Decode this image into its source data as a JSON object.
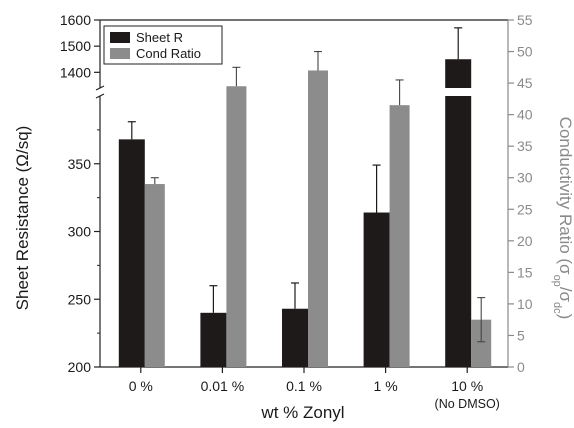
{
  "chart_data": {
    "type": "bar",
    "title": "",
    "xlabel": "wt % Zonyl",
    "ylabel_left": "Sheet Resistance (Ω/sq)",
    "ylabel_right_main": "Conductivity Ratio (σ",
    "ylabel_right_sub1": "op",
    "ylabel_right_mid": "/σ",
    "ylabel_right_sub2": "dc",
    "ylabel_right_end": ")",
    "categories": [
      {
        "label": "0 %",
        "sublabel": ""
      },
      {
        "label": "0.01 %",
        "sublabel": ""
      },
      {
        "label": "0.1 %",
        "sublabel": ""
      },
      {
        "label": "1 %",
        "sublabel": ""
      },
      {
        "label": "10 %",
        "sublabel": "(No DMSO)"
      }
    ],
    "series": [
      {
        "name": "Sheet R",
        "axis": "left",
        "color": "#1f1a1a",
        "values": [
          368,
          240,
          243,
          314,
          1450
        ],
        "errors": [
          13,
          20,
          19,
          35,
          120
        ]
      },
      {
        "name": "Cond Ratio",
        "axis": "right",
        "color": "#8c8c8c",
        "values": [
          29,
          44.5,
          47,
          41.5,
          7.5
        ],
        "errors": [
          1,
          3,
          3,
          4,
          3.5
        ]
      }
    ],
    "y_left": {
      "lower_range": [
        200,
        400
      ],
      "lower_ticks": [
        200,
        250,
        300,
        350
      ],
      "upper_range": [
        1340,
        1600
      ],
      "upper_ticks": [
        1400,
        1500,
        1600
      ],
      "axis_break": true
    },
    "y_right": {
      "range": [
        0,
        55
      ],
      "ticks": [
        0,
        5,
        10,
        15,
        20,
        25,
        30,
        35,
        40,
        45,
        50,
        55
      ],
      "color": "#8a8a8a"
    },
    "legend": {
      "position": "top-left",
      "entries": [
        "Sheet R",
        "Cond Ratio"
      ]
    },
    "grid": false
  }
}
